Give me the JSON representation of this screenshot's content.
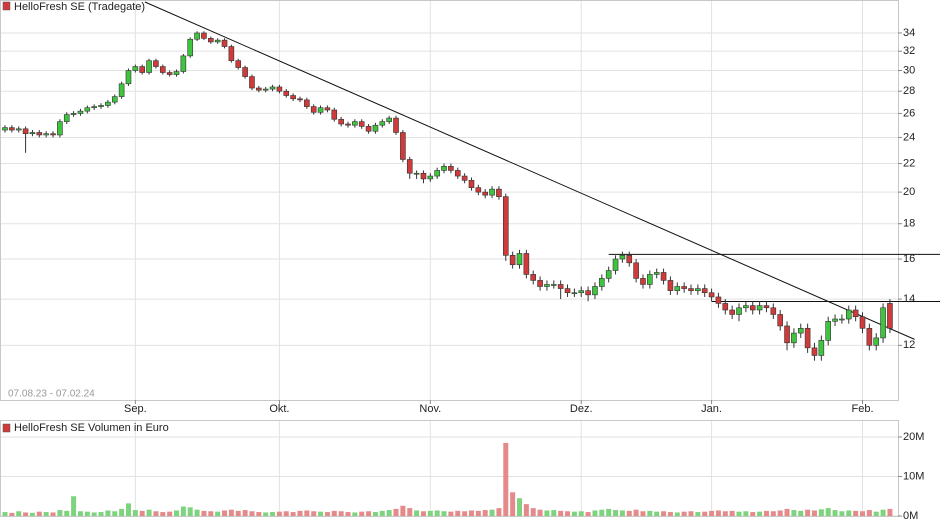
{
  "chart_data": [
    {
      "type": "candlestick",
      "title": "HelloFresh SE (Tradegate)",
      "date_range": "07.08.23 - 07.02.24",
      "categories": [
        null,
        null,
        null,
        null,
        null,
        null,
        null,
        null,
        null,
        null,
        null,
        null,
        null,
        null,
        null,
        null,
        null,
        null,
        null,
        "Sep.",
        null,
        null,
        null,
        null,
        null,
        null,
        null,
        null,
        null,
        null,
        null,
        null,
        null,
        null,
        null,
        null,
        null,
        null,
        null,
        null,
        "Okt.",
        null,
        null,
        null,
        null,
        null,
        null,
        null,
        null,
        null,
        null,
        null,
        null,
        null,
        null,
        null,
        null,
        null,
        null,
        null,
        null,
        null,
        "Nov.",
        null,
        null,
        null,
        null,
        null,
        null,
        null,
        null,
        null,
        null,
        null,
        null,
        null,
        null,
        null,
        null,
        null,
        null,
        null,
        null,
        null,
        "Dez.",
        null,
        null,
        null,
        null,
        null,
        null,
        null,
        null,
        null,
        null,
        null,
        null,
        null,
        null,
        null,
        null,
        null,
        null,
        "Jan.",
        null,
        null,
        null,
        null,
        null,
        null,
        null,
        null,
        null,
        null,
        null,
        null,
        null,
        null,
        null,
        null,
        null,
        null,
        null,
        null,
        null,
        "Feb.",
        null,
        null,
        null,
        null
      ],
      "open": [
        24.6,
        24.8,
        24.6,
        24.7,
        24.3,
        24.4,
        24.2,
        24.3,
        24.2,
        25.3,
        25.9,
        26,
        26.2,
        26.5,
        26.6,
        26.7,
        27,
        27.5,
        28.7,
        30,
        30.4,
        29.8,
        31,
        30.4,
        29.8,
        29.6,
        29.9,
        31.5,
        33.3,
        34,
        33.4,
        33,
        33.2,
        32.5,
        31,
        30.3,
        29.4,
        28.3,
        28.1,
        28.2,
        28.4,
        28,
        27.6,
        27.3,
        27.2,
        26.6,
        26.1,
        26.5,
        26.3,
        25.5,
        25.1,
        25,
        25.3,
        24.9,
        24.5,
        25,
        25.3,
        25.6,
        24.4,
        22.3,
        21.3,
        21.3,
        20.9,
        21.1,
        21.5,
        21.8,
        21.5,
        21.1,
        20.8,
        20.3,
        20,
        19.8,
        20.2,
        19.7,
        16.2,
        15.7,
        16.3,
        15.2,
        14.9,
        14.6,
        14.7,
        14.7,
        14.5,
        14.3,
        14.3,
        14.4,
        14.2,
        14.6,
        15,
        15.4,
        16,
        16.2,
        15.8,
        15,
        14.7,
        15.2,
        15.3,
        14.9,
        14.4,
        14.6,
        14.5,
        14.4,
        14.5,
        14.3,
        14.1,
        13.8,
        13.5,
        13.3,
        13.6,
        13.7,
        13.5,
        13.7,
        13.6,
        13.3,
        12.8,
        12.1,
        12.5,
        12.7,
        11.9,
        11.6,
        12.2,
        13,
        13.1,
        13.1,
        13.5,
        13.2,
        12.7,
        12,
        12.3,
        13.8
      ],
      "high": [
        25.0,
        25.0,
        24.9,
        24.9,
        24.6,
        24.6,
        24.5,
        24.5,
        25.5,
        26.1,
        26.2,
        26.4,
        26.7,
        26.8,
        26.9,
        27.2,
        27.7,
        28.9,
        30.2,
        30.6,
        30.6,
        31.2,
        31.2,
        30.6,
        30.0,
        30.1,
        31.7,
        33.5,
        34.2,
        34.2,
        33.6,
        33.4,
        33.4,
        32.7,
        31.2,
        30.5,
        29.6,
        28.5,
        28.4,
        28.6,
        28.6,
        28.2,
        27.8,
        27.5,
        27.4,
        26.8,
        26.7,
        26.7,
        26.5,
        25.7,
        25.3,
        25.5,
        25.5,
        25.1,
        25.2,
        25.5,
        25.8,
        25.8,
        24.6,
        22.5,
        21.5,
        21.5,
        21.3,
        21.7,
        22.0,
        22.0,
        21.7,
        21.3,
        21.0,
        20.5,
        20.2,
        20.4,
        20.4,
        19.9,
        16.4,
        16.5,
        16.5,
        15.4,
        15.1,
        14.9,
        14.9,
        14.9,
        14.7,
        14.5,
        14.6,
        14.6,
        14.8,
        15.2,
        15.6,
        16.2,
        16.4,
        16.4,
        16.0,
        15.2,
        15.4,
        15.5,
        15.5,
        15.1,
        14.8,
        14.8,
        14.7,
        14.7,
        14.7,
        14.5,
        14.3,
        14.0,
        13.7,
        13.8,
        13.9,
        13.9,
        13.9,
        13.9,
        13.8,
        13.5,
        13.0,
        12.7,
        12.9,
        12.9,
        12.1,
        12.4,
        13.2,
        13.3,
        13.3,
        13.7,
        13.7,
        13.4,
        12.9,
        12.5,
        13.8,
        14.0
      ],
      "low": [
        24.4,
        24.4,
        24.4,
        22.8,
        24.1,
        24.0,
        24.0,
        24.0,
        24.0,
        25.1,
        25.7,
        25.8,
        26.0,
        26.3,
        26.4,
        26.5,
        26.8,
        27.3,
        28.5,
        29.8,
        29.6,
        29.6,
        30.2,
        29.6,
        29.4,
        29.4,
        29.7,
        31.3,
        33.1,
        33.2,
        32.8,
        32.8,
        32.3,
        30.8,
        30.1,
        29.2,
        28.1,
        27.9,
        27.9,
        28.0,
        27.8,
        27.4,
        27.1,
        27.0,
        26.4,
        25.9,
        25.9,
        26.1,
        25.3,
        24.9,
        24.8,
        24.8,
        24.7,
        24.3,
        24.3,
        24.8,
        25.1,
        24.2,
        22.1,
        20.9,
        20.9,
        20.6,
        20.7,
        20.9,
        21.3,
        21.3,
        20.9,
        20.6,
        20.1,
        19.8,
        19.6,
        19.6,
        19.5,
        15.9,
        15.5,
        15.5,
        15.0,
        14.7,
        14.4,
        14.4,
        14.5,
        14.0,
        14.1,
        14.1,
        14.1,
        13.9,
        14.0,
        14.4,
        14.8,
        15.2,
        15.8,
        15.6,
        14.8,
        14.5,
        14.5,
        15.0,
        14.7,
        14.2,
        14.2,
        14.3,
        14.2,
        14.2,
        14.1,
        13.9,
        13.6,
        13.3,
        13.1,
        13.0,
        13.4,
        13.3,
        13.3,
        13.4,
        13.1,
        12.6,
        11.8,
        11.9,
        12.3,
        11.7,
        11.4,
        11.4,
        12.0,
        12.8,
        12.9,
        12.9,
        13.0,
        12.5,
        11.8,
        11.8,
        12.1,
        12.5
      ],
      "close": [
        24.8,
        24.6,
        24.7,
        24.3,
        24.4,
        24.2,
        24.3,
        24.2,
        25.3,
        25.9,
        26,
        26.2,
        26.5,
        26.6,
        26.7,
        27,
        27.5,
        28.7,
        30,
        30.4,
        29.8,
        31,
        30.4,
        29.8,
        29.6,
        29.9,
        31.5,
        33.3,
        34,
        33.4,
        33,
        33.2,
        32.5,
        31,
        30.3,
        29.4,
        28.3,
        28.1,
        28.2,
        28.4,
        28,
        27.6,
        27.3,
        27.2,
        26.6,
        26.1,
        26.5,
        26.3,
        25.5,
        25.1,
        25,
        25.3,
        24.9,
        24.5,
        25,
        25.3,
        25.6,
        24.4,
        22.3,
        21.3,
        21.3,
        20.9,
        21.1,
        21.5,
        21.8,
        21.5,
        21.1,
        20.8,
        20.3,
        20,
        19.8,
        20.2,
        19.7,
        16.2,
        15.7,
        16.3,
        15.2,
        14.9,
        14.6,
        14.7,
        14.7,
        14.5,
        14.3,
        14.3,
        14.4,
        14.2,
        14.6,
        15,
        15.4,
        16,
        16.2,
        15.8,
        15,
        14.7,
        15.2,
        15.3,
        14.9,
        14.4,
        14.6,
        14.5,
        14.4,
        14.5,
        14.3,
        14.1,
        13.8,
        13.5,
        13.3,
        13.6,
        13.7,
        13.5,
        13.7,
        13.6,
        13.3,
        12.8,
        12.1,
        12.5,
        12.7,
        11.9,
        11.6,
        12.2,
        13,
        13.1,
        13.1,
        13.5,
        13.2,
        12.7,
        12,
        12.3,
        13.6,
        12.7
      ],
      "up_color": "#3ec43e",
      "down_color": "#cf3b3b",
      "log_scale": true,
      "grid": true,
      "ylim": [
        10,
        37.7
      ],
      "yticks": [
        12,
        14,
        16,
        18,
        20,
        22,
        24,
        26,
        28,
        30,
        32,
        34
      ],
      "trend_line": {
        "x": [
          20.4,
          132.6
        ],
        "y": [
          37.7,
          12.24
        ]
      },
      "levels": [
        {
          "value": 16.25,
          "from": 88
        },
        {
          "value": 13.89,
          "from": 103
        }
      ]
    },
    {
      "type": "bar",
      "title": "HelloFresh SE Volumen in Euro",
      "up_color": "#7ed37e",
      "down_color": "#e58a8a",
      "grid": true,
      "values": [
        1.0,
        0.8,
        1.2,
        0.9,
        0.8,
        1.1,
        1.0,
        0.9,
        1.5,
        1.3,
        5.0,
        1.2,
        1.1,
        0.9,
        1.0,
        1.4,
        1.2,
        1.8,
        3.2,
        1.5,
        1.3,
        1.6,
        1.2,
        1.0,
        1.1,
        1.4,
        2.4,
        2.2,
        1.6,
        1.3,
        1.2,
        1.1,
        1.4,
        1.6,
        1.3,
        1.5,
        1.2,
        1.0,
        0.9,
        1.0,
        1.1,
        1.2,
        1.0,
        1.3,
        1.4,
        1.2,
        1.1,
        1.0,
        1.3,
        1.2,
        1.0,
        0.9,
        1.1,
        1.2,
        1.0,
        1.3,
        1.5,
        1.8,
        2.6,
        2.0,
        1.4,
        1.2,
        1.3,
        1.4,
        1.2,
        1.1,
        1.3,
        1.2,
        1.4,
        1.3,
        1.5,
        1.6,
        2.0,
        18.5,
        6.0,
        4.5,
        3.0,
        2.0,
        1.6,
        1.4,
        1.5,
        1.3,
        1.2,
        1.1,
        1.2,
        1.0,
        1.4,
        1.6,
        1.8,
        1.5,
        1.4,
        1.3,
        1.6,
        1.2,
        1.3,
        1.1,
        1.2,
        1.0,
        0.9,
        1.1,
        1.2,
        1.0,
        1.1,
        1.3,
        1.4,
        1.2,
        1.3,
        1.1,
        1.2,
        1.0,
        1.1,
        1.3,
        1.2,
        1.4,
        1.8,
        1.5,
        1.3,
        1.6,
        1.4,
        1.7,
        2.0,
        1.5,
        1.2,
        1.4,
        1.3,
        1.2,
        1.5,
        1.1,
        1.6,
        1.8
      ],
      "ylim": [
        0,
        24.3
      ],
      "yticks": [
        {
          "value": 0,
          "label": "0M"
        },
        {
          "value": 10,
          "label": "10M"
        },
        {
          "value": 20,
          "label": "20M"
        }
      ]
    }
  ]
}
